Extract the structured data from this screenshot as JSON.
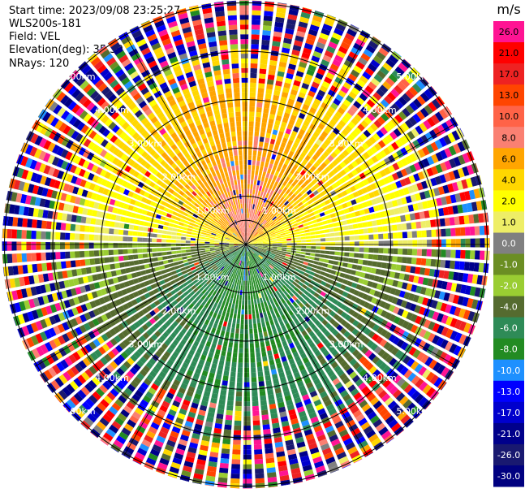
{
  "header": {
    "start_time": "Start time: 2023/09/08 23:25:27",
    "instrument": "WLS200s-181",
    "field": "Field: VEL",
    "elevation": "Elevation(deg): 35.30",
    "nrays": "NRays: 120"
  },
  "chart_data": {
    "type": "heatmap",
    "projection": "polar-ppi",
    "field": "VEL",
    "units": "m/s",
    "n_rays": 120,
    "ring_labels": [
      "1.00km",
      "2.00km",
      "3.00km",
      "4.00km",
      "5.00km"
    ],
    "spokes_deg": [
      0,
      30,
      60,
      90,
      120,
      150,
      180,
      210,
      240,
      270,
      300,
      330
    ],
    "vmin": -30.0,
    "vmax": 30.0,
    "velocity_pattern": {
      "positive_sector": "north",
      "negative_sector": "south",
      "near_range_positive_ms": 8.0,
      "near_range_negative_ms": -6.0,
      "noise_beyond_km": 4.0
    },
    "colorbar": {
      "title": "m/s",
      "ticks": [
        "26.0",
        "21.0",
        "17.0",
        "13.0",
        "10.0",
        "8.0",
        "6.0",
        "4.0",
        "2.0",
        "1.0",
        "0.0",
        "-1.0",
        "-2.0",
        "-4.0",
        "-6.0",
        "-8.0",
        "-10.0",
        "-13.0",
        "-17.0",
        "-21.0",
        "-26.0",
        "-30.0"
      ],
      "colors": [
        "#ff1493",
        "#ff0000",
        "#ee2222",
        "#ff4500",
        "#ff6347",
        "#fa8072",
        "#ffa500",
        "#ffd700",
        "#ffff00",
        "#eeee66",
        "#808080",
        "#6b8e23",
        "#9acd32",
        "#556b2f",
        "#2e8b57",
        "#228b22",
        "#1e90ff",
        "#0000ff",
        "#0000cd",
        "#00008b",
        "#191970",
        "#000080"
      ]
    }
  }
}
